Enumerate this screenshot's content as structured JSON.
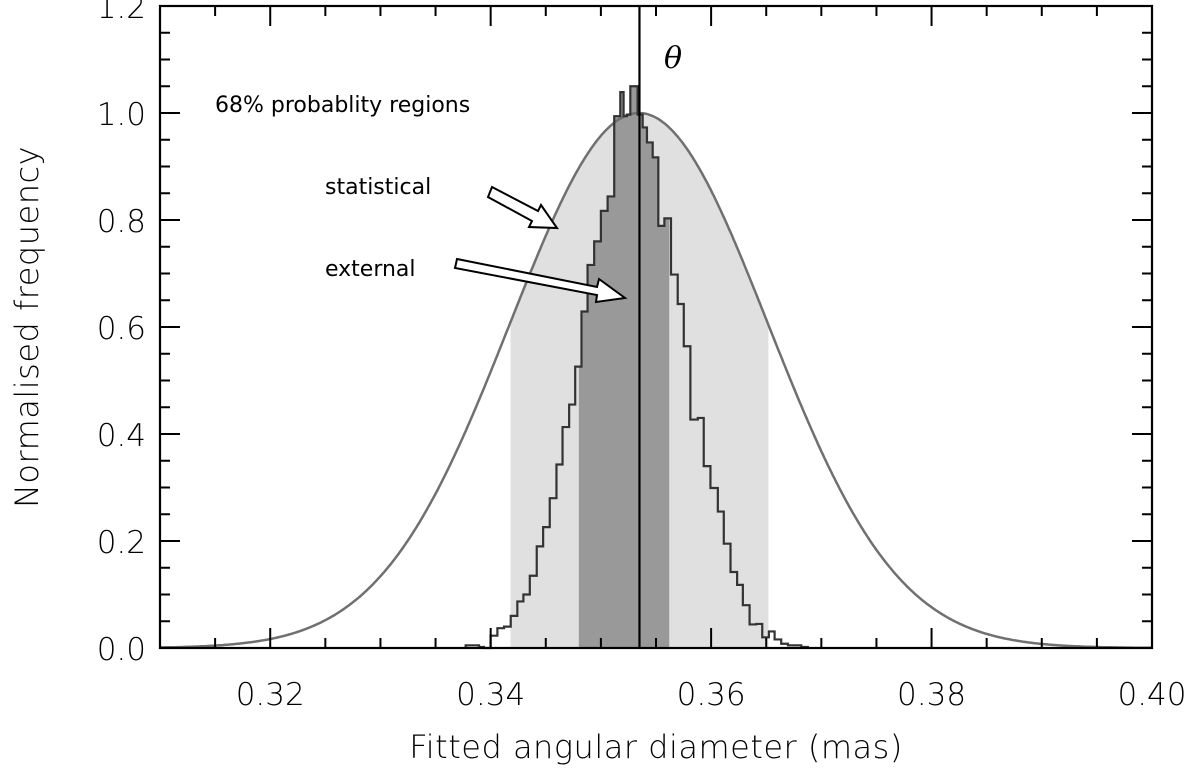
{
  "chart_data": {
    "type": "histogram",
    "title": "",
    "xlabel": "Fitted angular diameter (mas)",
    "ylabel": "Normalised frequency",
    "xlim": [
      0.31,
      0.4
    ],
    "ylim": [
      0.0,
      1.2
    ],
    "x_ticks": [
      0.32,
      0.34,
      0.36,
      0.38,
      0.4
    ],
    "x_tick_labels": [
      "0.32",
      "0.34",
      "0.36",
      "0.38",
      "0.40"
    ],
    "x_minor_step": 0.005,
    "y_ticks": [
      0.0,
      0.2,
      0.4,
      0.6,
      0.8,
      1.0,
      1.2
    ],
    "y_tick_labels": [
      "0.0",
      "0.2",
      "0.4",
      "0.6",
      "0.8",
      "1.0",
      "1.2"
    ],
    "y_minor_step": 0.05,
    "grid": false,
    "histogram": {
      "bin_edges": [
        0.33773,
        0.33894,
        0.33939,
        0.33999,
        0.34061,
        0.34121,
        0.34182,
        0.34242,
        0.34297,
        0.34355,
        0.34418,
        0.34476,
        0.34536,
        0.34597,
        0.34652,
        0.34712,
        0.34767,
        0.34824,
        0.34879,
        0.34939,
        0.35,
        0.35061,
        0.35121,
        0.35176,
        0.35206,
        0.35236,
        0.35267,
        0.35297,
        0.35333,
        0.35379,
        0.35418,
        0.3547,
        0.35521,
        0.35576,
        0.35636,
        0.35697,
        0.35752,
        0.35812,
        0.35879,
        0.35933,
        0.35994,
        0.36061,
        0.36115,
        0.36176,
        0.36236,
        0.36288,
        0.36349,
        0.36409,
        0.36464,
        0.36524,
        0.36576,
        0.36636,
        0.36697,
        0.36818,
        0.36879
      ],
      "values": [
        0.005,
        0.002,
        0,
        0.023,
        0.037,
        0.04,
        0.06,
        0.087,
        0.1,
        0.135,
        0.19,
        0.226,
        0.28,
        0.343,
        0.413,
        0.455,
        0.526,
        0.629,
        0.716,
        0.76,
        0.817,
        0.844,
        0.994,
        1.039,
        0.994,
        0.997,
        1.05,
        1.05,
        0.997,
        0.973,
        0.945,
        0.917,
        0.789,
        0.803,
        0.698,
        0.643,
        0.564,
        0.427,
        0.43,
        0.34,
        0.299,
        0.255,
        0.195,
        0.142,
        0.118,
        0.08,
        0.044,
        0.045,
        0.02,
        0.031,
        0.016,
        0.008,
        0.005,
        0.002
      ],
      "color": "#333333"
    },
    "gaussian": {
      "mean": 0.35345,
      "sigma": 0.0117,
      "amplitude": 1.0,
      "color": "#707070"
    },
    "regions": [
      {
        "label": "statistical",
        "range": [
          0.3418,
          0.3652
        ],
        "color": "#e0e0e0"
      },
      {
        "label": "external",
        "range": [
          0.348,
          0.3562
        ],
        "color": "#999999"
      }
    ],
    "theta_line": {
      "x": 0.3535,
      "label": "θ",
      "color": "#000000"
    },
    "annotations": {
      "regions_title": "68% probablity regions",
      "statistical": "statistical",
      "external": "external"
    }
  }
}
